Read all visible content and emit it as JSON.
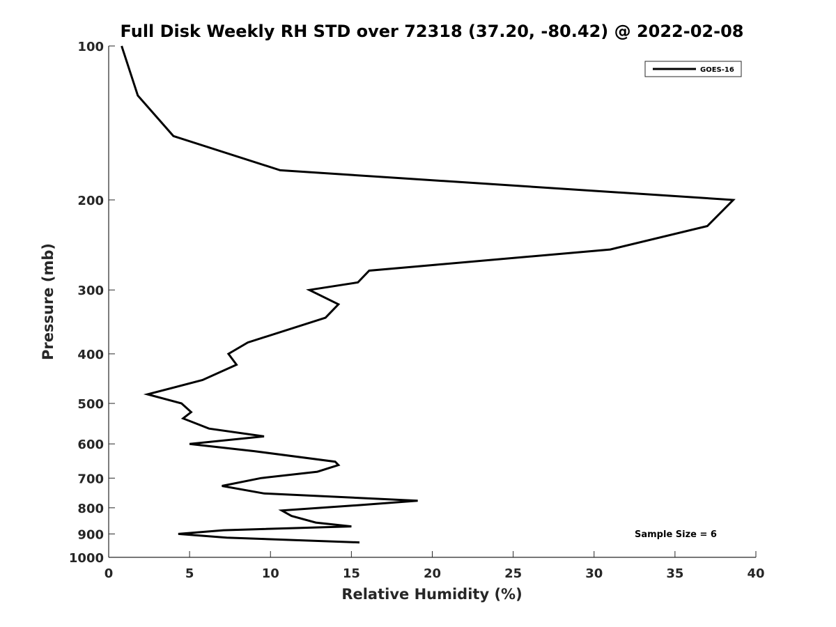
{
  "chart_data": {
    "type": "line",
    "title": "Full Disk Weekly RH STD over 72318 (37.20, -80.42) @ 2022-02-08",
    "xlabel": "Relative Humidity (%)",
    "ylabel": "Pressure (mb)",
    "xlim": [
      0,
      40
    ],
    "ylim": [
      100,
      1000
    ],
    "y_scale": "log",
    "y_reversed": true,
    "xticks": [
      "0",
      "5",
      "10",
      "15",
      "20",
      "25",
      "30",
      "35",
      "40"
    ],
    "yticks": [
      "100",
      "200",
      "300",
      "400",
      "500",
      "600",
      "700",
      "800",
      "900",
      "1000"
    ],
    "grid": false,
    "legend_position": "top-right",
    "line_color": "#000000",
    "series": [
      {
        "name": "GOES-16",
        "points": [
          [
            0.8,
            100
          ],
          [
            1.8,
            125
          ],
          [
            4.0,
            150
          ],
          [
            10.6,
            175
          ],
          [
            38.6,
            200
          ],
          [
            37.0,
            225
          ],
          [
            31.0,
            250
          ],
          [
            16.1,
            275
          ],
          [
            15.4,
            290
          ],
          [
            12.4,
            300
          ],
          [
            14.2,
            320
          ],
          [
            13.4,
            340
          ],
          [
            8.6,
            380
          ],
          [
            7.4,
            400
          ],
          [
            7.9,
            420
          ],
          [
            5.8,
            450
          ],
          [
            2.4,
            480
          ],
          [
            4.5,
            500
          ],
          [
            5.1,
            520
          ],
          [
            4.6,
            535
          ],
          [
            6.2,
            560
          ],
          [
            9.6,
            580
          ],
          [
            5.0,
            600
          ],
          [
            9.0,
            620
          ],
          [
            14.0,
            650
          ],
          [
            14.2,
            660
          ],
          [
            12.9,
            680
          ],
          [
            9.4,
            700
          ],
          [
            7.0,
            725
          ],
          [
            9.6,
            750
          ],
          [
            19.1,
            775
          ],
          [
            15.6,
            790
          ],
          [
            10.7,
            810
          ],
          [
            11.3,
            830
          ],
          [
            12.8,
            855
          ],
          [
            15.0,
            870
          ],
          [
            7.1,
            885
          ],
          [
            4.3,
            900
          ],
          [
            7.3,
            915
          ],
          [
            15.5,
            935
          ]
        ]
      }
    ],
    "legend": {
      "entries": [
        "GOES-16"
      ]
    },
    "annotation": "Sample Size = 6"
  }
}
